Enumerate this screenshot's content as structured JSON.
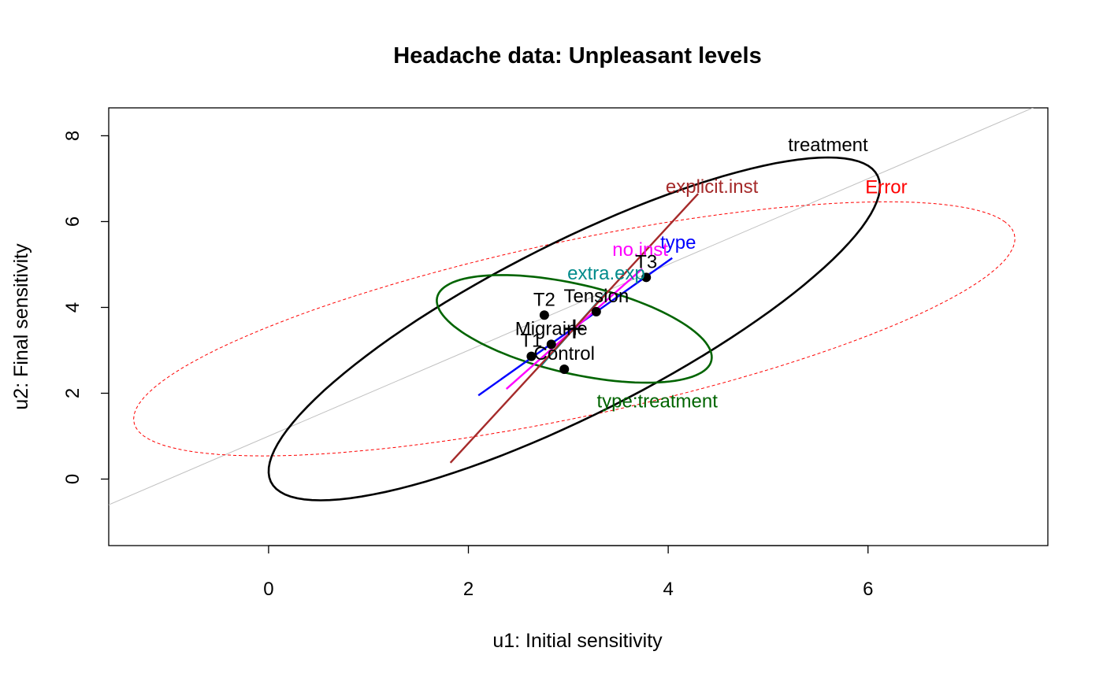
{
  "chart_data": {
    "type": "scatter",
    "title": "Headache data: Unpleasant levels",
    "xlabel": "u1: Initial sensitivity",
    "ylabel": "u2: Final sensitivity",
    "xlim": [
      -1.6,
      7.8
    ],
    "ylim": [
      -1.55,
      8.65
    ],
    "x_ticks": [
      "0",
      "2",
      "4",
      "6"
    ],
    "x_tick_values": [
      0,
      2,
      4,
      6
    ],
    "y_ticks": [
      "0",
      "2",
      "4",
      "6",
      "8"
    ],
    "y_tick_values": [
      0,
      2,
      4,
      6,
      8
    ],
    "grid": false,
    "reference_line": {
      "slope": 1,
      "intercept": 1.0,
      "color": "#c0c0c0"
    },
    "points": [
      {
        "label": "T2",
        "x": 2.76,
        "y": 3.82
      },
      {
        "label": "Tension",
        "x": 3.28,
        "y": 3.9
      },
      {
        "label": "Migraine",
        "x": 2.83,
        "y": 3.14
      },
      {
        "label": "T1",
        "x": 2.63,
        "y": 2.86
      },
      {
        "label": "Control",
        "x": 2.96,
        "y": 2.56
      },
      {
        "label": "T3",
        "x": 3.78,
        "y": 4.7
      }
    ],
    "grand_mean": {
      "x": 3.06,
      "y": 3.5
    },
    "ellipses": [
      {
        "label": "Error",
        "color": "#ff0000",
        "dashed": true,
        "cx": 3.06,
        "cy": 3.5,
        "a": 4.98,
        "b": 1.85,
        "angle_deg": 30
      },
      {
        "label": "treatment",
        "color": "#000000",
        "dashed": false,
        "cx": 3.06,
        "cy": 3.5,
        "a": 4.83,
        "b": 1.41,
        "angle_deg": 54
      },
      {
        "label": "type:treatment",
        "color": "#006400",
        "dashed": false,
        "cx": 3.06,
        "cy": 3.5,
        "a": 1.63,
        "b": 0.9,
        "angle_deg": -40
      }
    ],
    "lines": [
      {
        "label": "type",
        "color": "#0000ff",
        "x1": 2.1,
        "y1": 1.95,
        "x2": 4.04,
        "y2": 5.15
      },
      {
        "label": "no.inst",
        "color": "#ff00ff",
        "x1": 2.38,
        "y1": 2.1,
        "x2": 3.74,
        "y2": 4.9
      },
      {
        "label": "extra.exp",
        "color": "#008b8b",
        "x1": 2.73,
        "y1": 2.65,
        "x2": 3.38,
        "y2": 4.35
      },
      {
        "label": "explicit.inst",
        "color": "#a52a2a",
        "x1": 1.82,
        "y1": 0.38,
        "x2": 4.3,
        "y2": 6.65
      }
    ]
  }
}
